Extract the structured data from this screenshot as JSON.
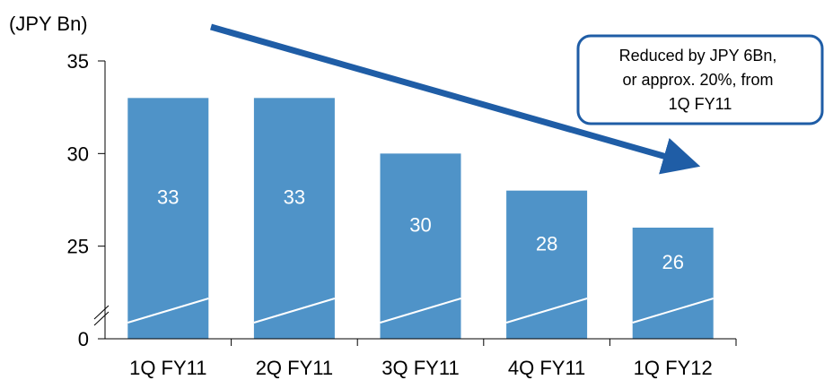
{
  "chart_data": {
    "type": "bar",
    "unit_label": "(JPY Bn)",
    "categories": [
      "1Q FY11",
      "2Q FY11",
      "3Q FY11",
      "4Q FY11",
      "1Q FY12"
    ],
    "values": [
      33,
      33,
      30,
      28,
      26
    ],
    "data_labels": [
      "33",
      "33",
      "30",
      "28",
      "26"
    ],
    "y_ticks": [
      "0",
      "25",
      "30",
      "35"
    ],
    "ylim": [
      20,
      35
    ],
    "axis_break": true,
    "bar_color": "#4F93C8",
    "arrow_color": "#1F5DA6",
    "trend": "decreasing",
    "annotation": {
      "lines": [
        "Reduced by JPY 6Bn,",
        "or approx. 20%, from",
        "1Q FY11"
      ]
    }
  }
}
